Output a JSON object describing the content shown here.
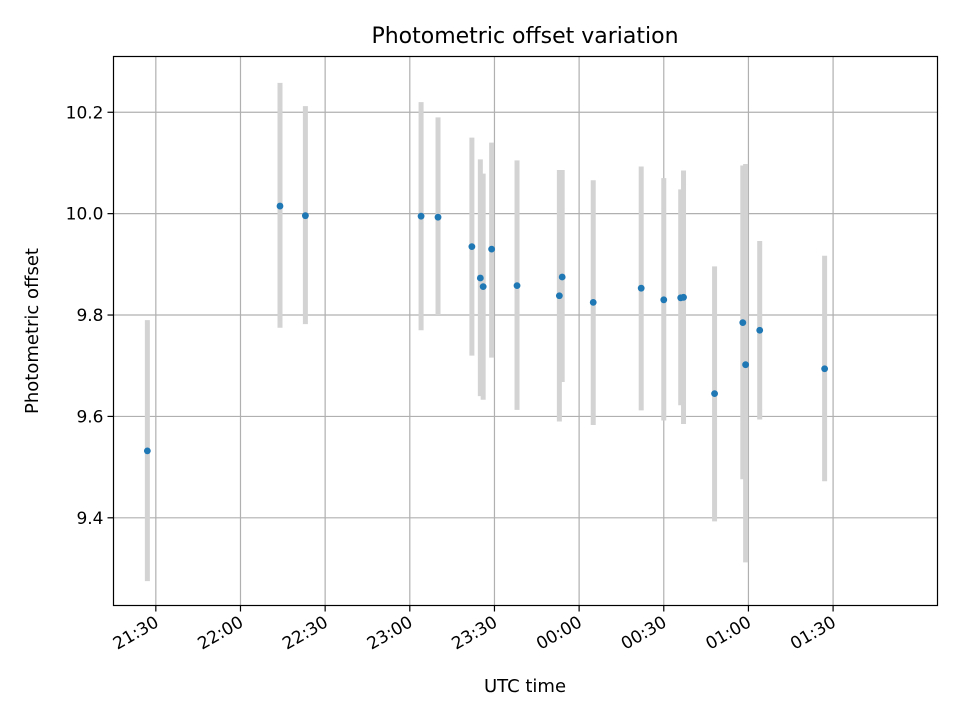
{
  "chart_data": {
    "type": "scatter",
    "title": "Photometric offset variation",
    "xlabel": "UTC time",
    "ylabel": "Photometric offset",
    "x_unit": "minutes",
    "x_ticks": [
      "21:30",
      "22:00",
      "22:30",
      "23:00",
      "23:30",
      "00:00",
      "00:30",
      "01:00",
      "01:30"
    ],
    "y_ticks": [
      "9.4",
      "9.6",
      "9.8",
      "10.0",
      "10.2"
    ],
    "ylim": [
      9.227,
      10.31
    ],
    "grid": true,
    "colors": {
      "point": "#1f77b4",
      "errorbar": "#d3d3d3",
      "grid": "#b0b0b0"
    },
    "points": [
      {
        "x": "21:27",
        "y": 9.532,
        "ylo": 9.275,
        "yhi": 9.79
      },
      {
        "x": "22:14",
        "y": 10.015,
        "ylo": 9.775,
        "yhi": 10.258
      },
      {
        "x": "22:23",
        "y": 9.996,
        "ylo": 9.782,
        "yhi": 10.212
      },
      {
        "x": "23:04",
        "y": 9.995,
        "ylo": 9.77,
        "yhi": 10.22
      },
      {
        "x": "23:10",
        "y": 9.993,
        "ylo": 9.8,
        "yhi": 10.19
      },
      {
        "x": "23:22",
        "y": 9.935,
        "ylo": 9.72,
        "yhi": 10.15
      },
      {
        "x": "23:25",
        "y": 9.873,
        "ylo": 9.64,
        "yhi": 10.107
      },
      {
        "x": "23:26",
        "y": 9.856,
        "ylo": 9.633,
        "yhi": 10.079
      },
      {
        "x": "23:29",
        "y": 9.93,
        "ylo": 9.716,
        "yhi": 10.14
      },
      {
        "x": "23:38",
        "y": 9.858,
        "ylo": 9.613,
        "yhi": 10.105
      },
      {
        "x": "23:53",
        "y": 9.838,
        "ylo": 9.59,
        "yhi": 10.086
      },
      {
        "x": "23:54",
        "y": 9.875,
        "ylo": 9.668,
        "yhi": 10.086
      },
      {
        "x": "00:05",
        "y": 9.825,
        "ylo": 9.583,
        "yhi": 10.066
      },
      {
        "x": "00:22",
        "y": 9.853,
        "ylo": 9.612,
        "yhi": 10.093
      },
      {
        "x": "00:30",
        "y": 9.83,
        "ylo": 9.592,
        "yhi": 10.07
      },
      {
        "x": "00:36",
        "y": 9.834,
        "ylo": 9.622,
        "yhi": 10.048
      },
      {
        "x": "00:37",
        "y": 9.835,
        "ylo": 9.585,
        "yhi": 10.085
      },
      {
        "x": "00:48",
        "y": 9.645,
        "ylo": 9.393,
        "yhi": 9.896
      },
      {
        "x": "00:58",
        "y": 9.785,
        "ylo": 9.476,
        "yhi": 10.095
      },
      {
        "x": "00:59",
        "y": 9.702,
        "ylo": 9.312,
        "yhi": 10.098
      },
      {
        "x": "01:04",
        "y": 9.77,
        "ylo": 9.594,
        "yhi": 9.946
      },
      {
        "x": "01:27",
        "y": 9.694,
        "ylo": 9.472,
        "yhi": 9.917
      }
    ]
  }
}
